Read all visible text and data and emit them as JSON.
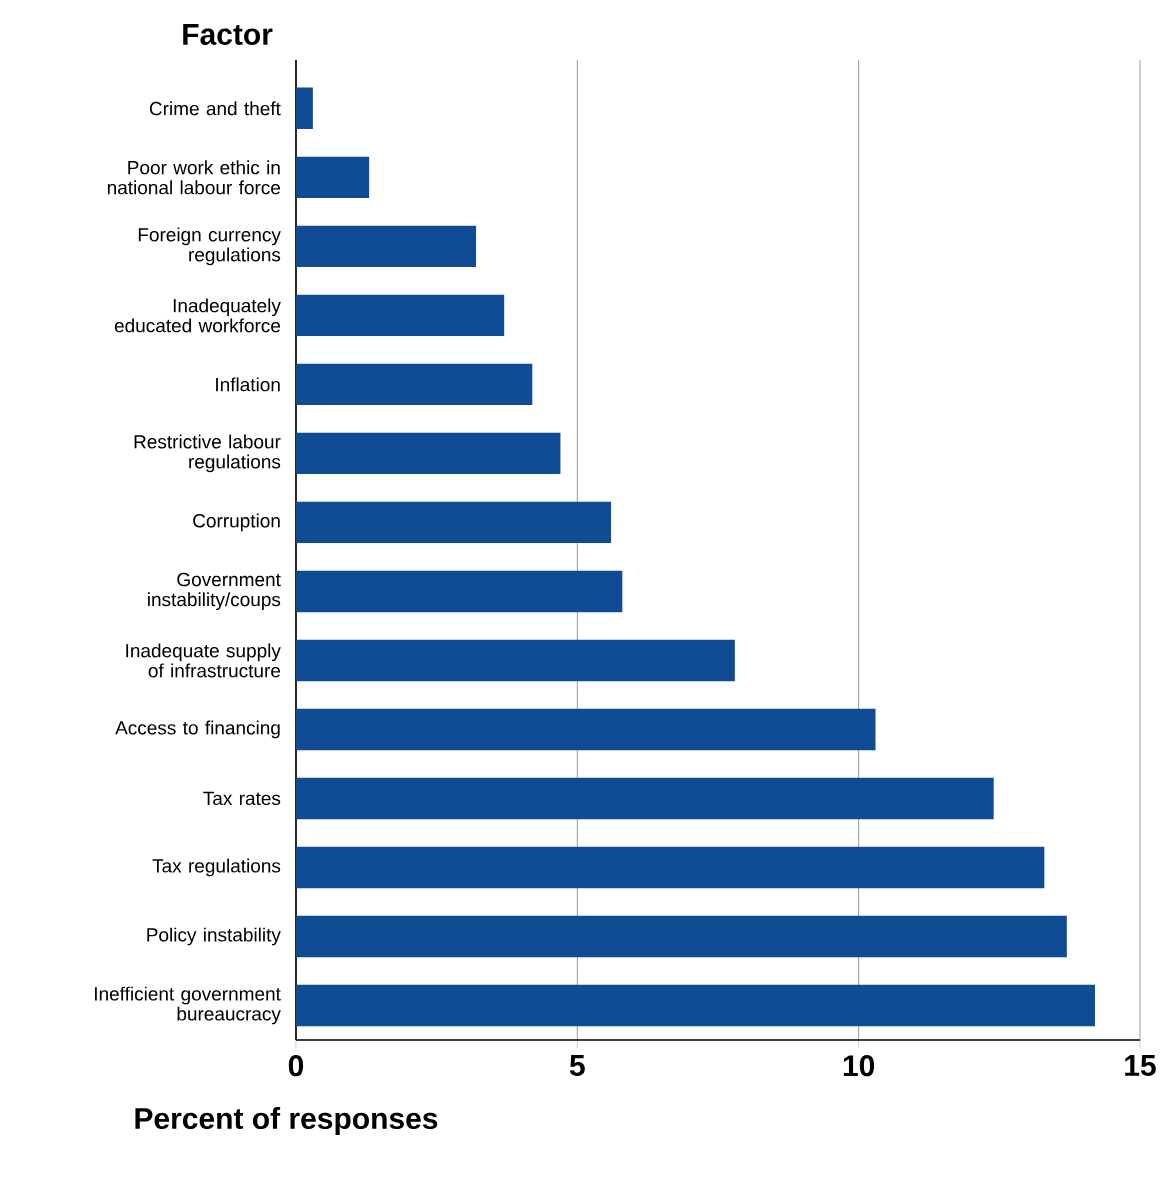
{
  "chart_data": {
    "type": "bar",
    "orientation": "horizontal",
    "ylabel": "Factor",
    "xlabel": "Percent of responses",
    "categories": [
      "Crime and theft",
      "Poor work ethic in national labour force",
      "Foreign currency regulations",
      "Inadequately educated workforce",
      "Inflation",
      "Restrictive labour regulations",
      "Corruption",
      "Government instability/coups",
      "Inadequate supply of infrastructure",
      "Access to financing",
      "Tax rates",
      "Tax regulations",
      "Policy instability",
      "Inefficient government bureaucracy"
    ],
    "values": [
      0.3,
      1.3,
      3.2,
      3.7,
      4.2,
      4.7,
      5.6,
      5.8,
      7.8,
      10.3,
      12.4,
      13.3,
      13.7,
      14.2
    ],
    "color": "#0f4c94",
    "xlim": [
      0,
      15
    ],
    "xticks": [
      0,
      5,
      10,
      15
    ],
    "grid": "x"
  }
}
